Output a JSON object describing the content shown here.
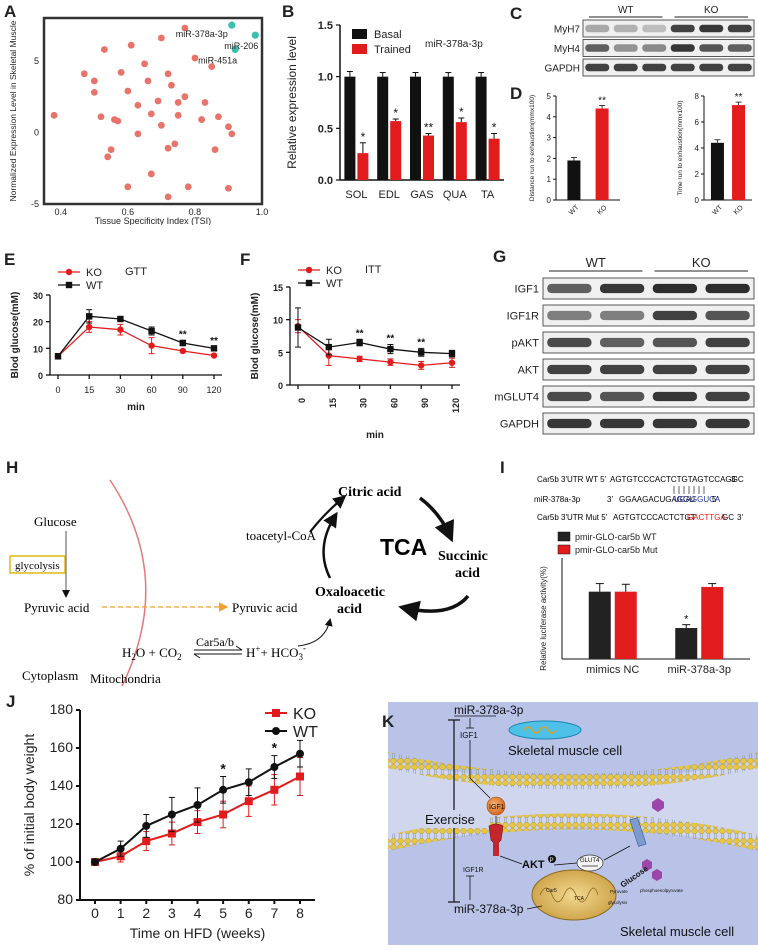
{
  "panels": {
    "A": {
      "label": "A",
      "chart_data": {
        "type": "scatter",
        "xlabel": "Tissue Specificity Index (TSI)",
        "ylabel": "Normalized Expression Level in Skeletal Muscle",
        "xlim": [
          0.35,
          1.0
        ],
        "ylim": [
          -5,
          8
        ],
        "xticks": [
          "0.4",
          "0.6",
          "0.8",
          "1.0"
        ],
        "yticks": [
          "-5",
          "0",
          "5"
        ],
        "points_other": [
          [
            0.38,
            1.2
          ],
          [
            0.47,
            4.1
          ],
          [
            0.5,
            3.6
          ],
          [
            0.5,
            2.8
          ],
          [
            0.52,
            1.1
          ],
          [
            0.53,
            5.8
          ],
          [
            0.54,
            -1.7
          ],
          [
            0.55,
            -1.2
          ],
          [
            0.56,
            0.9
          ],
          [
            0.57,
            0.8
          ],
          [
            0.58,
            4.2
          ],
          [
            0.6,
            2.9
          ],
          [
            0.6,
            -3.8
          ],
          [
            0.61,
            6.1
          ],
          [
            0.63,
            1.9
          ],
          [
            0.63,
            -0.1
          ],
          [
            0.65,
            4.8
          ],
          [
            0.66,
            3.6
          ],
          [
            0.67,
            1.3
          ],
          [
            0.67,
            -2.9
          ],
          [
            0.69,
            2.2
          ],
          [
            0.7,
            6.6
          ],
          [
            0.7,
            0.5
          ],
          [
            0.72,
            4.1
          ],
          [
            0.72,
            -1.1
          ],
          [
            0.73,
            3.3
          ],
          [
            0.74,
            -0.8
          ],
          [
            0.75,
            2.1
          ],
          [
            0.75,
            1.2
          ],
          [
            0.77,
            2.5
          ],
          [
            0.77,
            7.3
          ],
          [
            0.78,
            -3.8
          ],
          [
            0.8,
            5.2
          ],
          [
            0.82,
            0.9
          ],
          [
            0.83,
            2.1
          ],
          [
            0.85,
            4.6
          ],
          [
            0.86,
            -1.2
          ],
          [
            0.87,
            1.1
          ],
          [
            0.9,
            0.4
          ],
          [
            0.91,
            -0.1
          ],
          [
            0.9,
            -3.9
          ],
          [
            0.72,
            -4.5
          ]
        ],
        "points_highlight": [
          {
            "label": "miR-378a-3p",
            "x": 0.91,
            "y": 7.5
          },
          {
            "label": "miR-206",
            "x": 0.98,
            "y": 6.8
          },
          {
            "label": "miR-451a",
            "x": 0.92,
            "y": 5.8
          }
        ],
        "colors": {
          "other": "#e8736a",
          "highlight": "#3cbfae"
        }
      }
    },
    "B": {
      "label": "B",
      "chart_data": {
        "type": "bar",
        "title": "miR-378a-3p",
        "ylabel": "Relative expression level",
        "categories": [
          "SOL",
          "EDL",
          "GAS",
          "QUA",
          "TA"
        ],
        "ylim": [
          0,
          1.5
        ],
        "yticks": [
          "0.0",
          "0.5",
          "1.0",
          "1.5"
        ],
        "series": [
          {
            "name": "Basal",
            "values": [
              1.0,
              1.0,
              1.0,
              1.0,
              1.0
            ],
            "errors": [
              0.05,
              0.04,
              0.04,
              0.04,
              0.04
            ],
            "color": "#111111"
          },
          {
            "name": "Trained",
            "values": [
              0.26,
              0.57,
              0.43,
              0.56,
              0.4
            ],
            "errors": [
              0.1,
              0.02,
              0.02,
              0.04,
              0.05
            ],
            "color": "#e21c1c"
          }
        ],
        "sig": [
          "*",
          "*",
          "**",
          "*",
          "*"
        ]
      }
    },
    "C": {
      "label": "C",
      "groups": [
        "WT",
        "KO"
      ],
      "rows": [
        "MyH7",
        "MyH4",
        "GAPDH"
      ]
    },
    "D": {
      "label": "D",
      "charts": [
        {
          "type": "bar",
          "ylabel": "Distance run to exhaustion(mmx100)",
          "categories": [
            "WT",
            "KO"
          ],
          "values": [
            1.9,
            4.4
          ],
          "ylim": [
            0,
            5
          ],
          "yticks": [
            "0",
            "1",
            "2",
            "3",
            "4",
            "5"
          ],
          "sig": "**",
          "colors": [
            "#111111",
            "#e21c1c"
          ]
        },
        {
          "type": "bar",
          "ylabel": "Time run to exhaustion(mmx100)",
          "categories": [
            "WT",
            "KO"
          ],
          "values": [
            4.4,
            7.3
          ],
          "ylim": [
            0,
            8
          ],
          "yticks": [
            "0",
            "2",
            "4",
            "6",
            "8"
          ],
          "sig": "**",
          "colors": [
            "#111111",
            "#e21c1c"
          ]
        }
      ]
    },
    "E": {
      "label": "E",
      "chart_data": {
        "type": "line",
        "title": "GTT",
        "xlabel": "min",
        "ylabel": "Blod glucose(mM)",
        "categories": [
          "0",
          "15",
          "30",
          "60",
          "90",
          "120"
        ],
        "ylim": [
          0,
          30
        ],
        "yticks": [
          "0",
          "10",
          "20",
          "30"
        ],
        "series": [
          {
            "name": "KO",
            "values": [
              7,
              18,
              17,
              11,
              9,
              7.3
            ],
            "errors": [
              1,
              2,
              2,
              3,
              0.5,
              0.4
            ],
            "color": "#e21c1c",
            "marker": "circle"
          },
          {
            "name": "WT",
            "values": [
              7,
              22,
              21,
              16.5,
              12,
              10
            ],
            "errors": [
              1,
              2.5,
              0.5,
              1.5,
              1,
              0.5
            ],
            "color": "#111111",
            "marker": "square"
          }
        ],
        "sig": [
          "",
          "",
          "",
          "",
          "**",
          "**"
        ]
      }
    },
    "F": {
      "label": "F",
      "chart_data": {
        "type": "line",
        "title": "ITT",
        "xlabel": "min",
        "ylabel": "Blod glucose(mM)",
        "categories": [
          "0",
          "15",
          "30",
          "60",
          "90",
          "120"
        ],
        "ylim": [
          0,
          15
        ],
        "yticks": [
          "0",
          "5",
          "10",
          "15"
        ],
        "series": [
          {
            "name": "KO",
            "values": [
              9,
              4.5,
              4,
              3.5,
              3,
              3.4
            ],
            "errors": [
              1,
              1.5,
              0.4,
              0.5,
              0.6,
              0.7
            ],
            "color": "#e21c1c",
            "marker": "circle"
          },
          {
            "name": "WT",
            "values": [
              8.8,
              5.8,
              6.5,
              5.5,
              5,
              4.8
            ],
            "errors": [
              3,
              1.2,
              0.5,
              0.7,
              0.6,
              0.5
            ],
            "color": "#111111",
            "marker": "square"
          }
        ],
        "sig": [
          "",
          "",
          "**",
          "**",
          "**",
          ""
        ]
      }
    },
    "G": {
      "label": "G",
      "groups": [
        "WT",
        "KO"
      ],
      "rows": [
        "IGF1",
        "IGF1R",
        "pAKT",
        "AKT",
        "mGLUT4",
        "GAPDH"
      ]
    },
    "H": {
      "label": "H",
      "glucose": "Glucose",
      "glycolysis": "glycolysis",
      "pyruvic_left": "Pyruvic acid",
      "pyruvic_right": "Pyruvic acid",
      "acetyl": "toacetyl-CoA",
      "citric": "Citric acid",
      "tca": "TCA",
      "succinic_1": "Succinic",
      "succinic_2": "acid",
      "oxaloacetic_1": "Oxaloacetic",
      "oxaloacetic_2": "acid",
      "enzyme": "Car5a/b",
      "cytoplasm": "Cytoplasm",
      "mitochondria": "Mitochondria"
    },
    "I": {
      "label": "I",
      "seq_wt_label": "Car5b 3'UTR WT 5'",
      "seq_wt_black": "AGTGTCCCACTCTGTAGTCCAGGC",
      "seq_wt_end": "3'",
      "seq_mir_label": "miR-378a-3p",
      "seq_mir_prefix": "3'",
      "seq_mir_black": "GGAAGACUGAGGU",
      "seq_mir_blue": "UCAGGUCA",
      "seq_mir_end": "5'",
      "seq_mut_label": "Car5b 3'UTR Mut 5'",
      "seq_mut_black": "AGTGTCCCACTCTGT",
      "seq_mut_red": "GACTTGA",
      "seq_mut_tail": "GC",
      "seq_mut_end": "3'",
      "chart_data": {
        "type": "bar",
        "ylabel": "Relative luciferase activity(%)",
        "categories": [
          "mimics NC",
          "miR-378a-3p"
        ],
        "ylim": [
          0,
          1.5
        ],
        "series": [
          {
            "name": "pmir-GLO-car5b WT",
            "values": [
              1.0,
              0.46
            ],
            "errors": [
              0.12,
              0.05
            ],
            "color": "#222222"
          },
          {
            "name": "pmir-GLO-car5b Mut",
            "values": [
              1.0,
              1.07
            ],
            "errors": [
              0.11,
              0.05
            ],
            "color": "#e21c1c"
          }
        ],
        "sig": [
          "",
          "*"
        ]
      }
    },
    "J": {
      "label": "J",
      "chart_data": {
        "type": "line",
        "xlabel": "Time on HFD (weeks)",
        "ylabel": "% of initial body weight",
        "categories": [
          "0",
          "1",
          "2",
          "3",
          "4",
          "5",
          "6",
          "7",
          "8"
        ],
        "ylim": [
          80,
          180
        ],
        "yticks": [
          "80",
          "100",
          "120",
          "140",
          "160",
          "180"
        ],
        "series": [
          {
            "name": "KO",
            "values": [
              100,
              103,
              111,
              115,
              121,
              125,
              132,
              138,
              145
            ],
            "errors": [
              1,
              3,
              5,
              6,
              6,
              7,
              8,
              8,
              10
            ],
            "color": "#e21c1c",
            "marker": "square"
          },
          {
            "name": "WT",
            "values": [
              100,
              107,
              119,
              125,
              130,
              138,
              142,
              150,
              157
            ],
            "errors": [
              1,
              4,
              6,
              9,
              9,
              7,
              7,
              6,
              7
            ],
            "color": "#111111",
            "marker": "circle"
          }
        ],
        "sig": [
          "",
          "",
          "",
          "",
          "",
          "*",
          "",
          "*",
          ""
        ]
      }
    },
    "K": {
      "label": "K",
      "mir_top": "miR-378a-3p",
      "igf1_small": "IGF1",
      "cell_top": "Skeletal muscle cell",
      "exercise": "Exercise",
      "igf1_ball": "IGF1",
      "akt": "AKT",
      "phos": "P",
      "glut4": "GLUT4",
      "glucose": "Glucose",
      "igf1r": "IGF1R",
      "mir_bottom": "miR-378a-3p",
      "car5": "Car5",
      "pyruvate": "Pyruvate",
      "tca": "TCA",
      "glycolysis": "glycolysis",
      "phospho": "phosphoenolpyruvate",
      "cell_bottom": "Skeletal muscle cell"
    }
  }
}
